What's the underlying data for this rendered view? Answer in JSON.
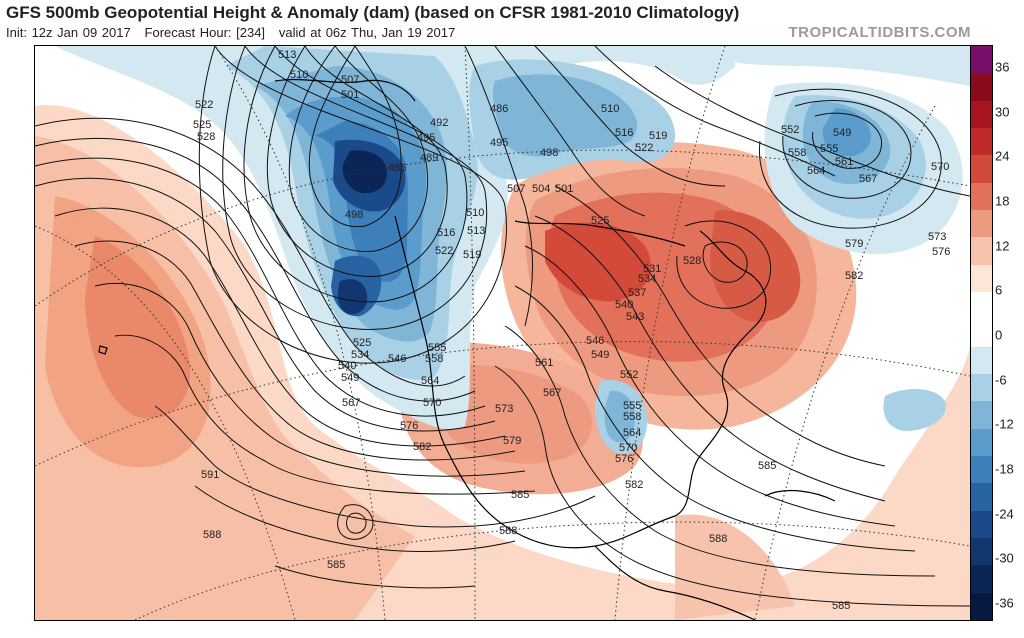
{
  "title": "GFS 500mb Geopotential Height & Anomaly (dam) (based on CFSR 1981-2010 Climatology)",
  "run_info": {
    "init": "Init: 12z Jan 09 2017",
    "forecast_hour": "Forecast Hour: [234]",
    "valid": "valid at 06z Thu, Jan 19 2017"
  },
  "brand": "TROPICALTIDBITS.COM",
  "colorbar": {
    "ticks": [
      "36",
      "30",
      "24",
      "18",
      "12",
      "6",
      "0",
      "-6",
      "-12",
      "-18",
      "-24",
      "-30",
      "-36"
    ],
    "colors": [
      "#7a0f6a",
      "#8a0b1c",
      "#a8141f",
      "#c12a2a",
      "#d44a3a",
      "#e2705a",
      "#ee9a80",
      "#f7c3ac",
      "#fde5d8",
      "#ffffff",
      "#ffffff",
      "#d4e8f2",
      "#a9d1e6",
      "#7fb6d8",
      "#5a9ccb",
      "#3d7fba",
      "#2762a3",
      "#1b4a8a",
      "#123670",
      "#0b2656",
      "#061a40"
    ]
  },
  "contour_labels": {
    "ridge_west": [
      "591",
      "588",
      "585"
    ],
    "trough_alaska": [
      "513",
      "510",
      "507",
      "501",
      "495",
      "492",
      "489",
      "486",
      "498"
    ],
    "trough_pnw": [
      "525",
      "534",
      "540",
      "549",
      "546",
      "555",
      "558",
      "564",
      "567",
      "576",
      "582"
    ],
    "northwest": [
      "522",
      "525",
      "528"
    ],
    "hudson": [
      "486",
      "495",
      "498",
      "507",
      "504",
      "501",
      "510",
      "516",
      "519",
      "522",
      "513",
      "510",
      "516",
      "519",
      "522",
      "525",
      "528",
      "531",
      "534",
      "537",
      "540",
      "543",
      "546",
      "549",
      "552"
    ],
    "plains": [
      "561",
      "567",
      "570",
      "573",
      "579",
      "585",
      "588"
    ],
    "east_us": [
      "555",
      "558",
      "564",
      "570",
      "576",
      "582",
      "585",
      "588"
    ],
    "atlantic": [
      "552",
      "555",
      "558",
      "561",
      "564",
      "567",
      "570",
      "573",
      "576",
      "579",
      "582",
      "549",
      "585"
    ]
  }
}
